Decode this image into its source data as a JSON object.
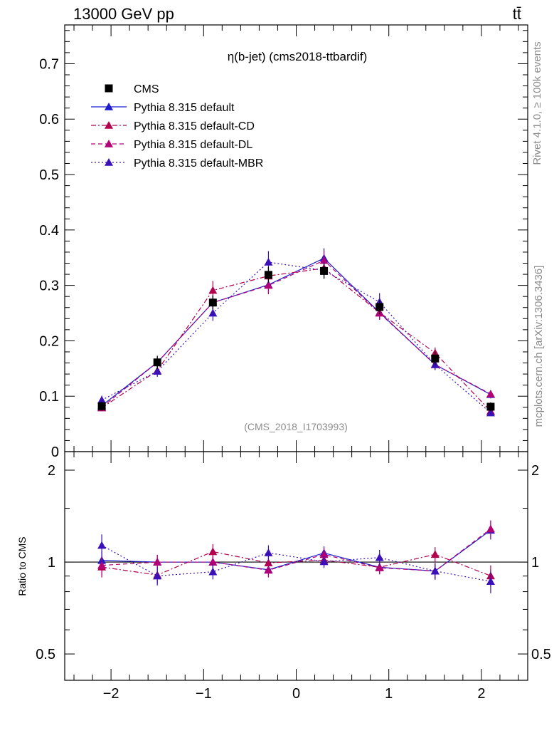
{
  "header": {
    "left": "13000 GeV pp",
    "right": "tt̄"
  },
  "side_labels": {
    "rivet": "Rivet 4.1.0, ≥ 100k events",
    "mcplots": "mcplots.cern.ch [arXiv:1306.3436]"
  },
  "chart_data": {
    "type": "scatter",
    "title": "η(b-jet) (cms2018-ttbardif)",
    "watermark": "(CMS_2018_I1703993)",
    "xlabel": "",
    "ylabel": "",
    "ratio_ylabel": "Ratio to CMS",
    "xlim": [
      -2.5,
      2.5
    ],
    "ylim": [
      0,
      0.77
    ],
    "ratio_ylim": [
      0.41,
      2.3
    ],
    "x_ticks": [
      -2,
      -1,
      0,
      1,
      2
    ],
    "x_tick_labels": [
      "−2",
      "−1",
      "0",
      "1",
      "2"
    ],
    "y_ticks": [
      0,
      0.1,
      0.2,
      0.3,
      0.4,
      0.5,
      0.6,
      0.7
    ],
    "y_tick_labels": [
      "0",
      "0.1",
      "0.2",
      "0.3",
      "0.4",
      "0.5",
      "0.6",
      "0.7"
    ],
    "ratio_ticks": [
      0.5,
      1,
      2
    ],
    "ratio_tick_labels": [
      "0.5",
      "1",
      "2"
    ],
    "x": [
      -2.1,
      -1.5,
      -0.9,
      -0.3,
      0.3,
      0.9,
      1.5,
      2.1
    ],
    "data": {
      "name": "CMS",
      "color": "#000000",
      "values": [
        0.082,
        0.161,
        0.269,
        0.319,
        0.326,
        0.261,
        0.168,
        0.081
      ],
      "errors": [
        0.008,
        0.012,
        0.013,
        0.014,
        0.014,
        0.013,
        0.012,
        0.008
      ]
    },
    "series": [
      {
        "name": "Pythia 8.315 default",
        "color": "#1c1ccc",
        "dash": "",
        "values": [
          0.083,
          0.161,
          0.269,
          0.301,
          0.349,
          0.251,
          0.157,
          0.103
        ],
        "errors": [
          0.006,
          0.009,
          0.012,
          0.016,
          0.018,
          0.012,
          0.009,
          0.007
        ]
      },
      {
        "name": "Pythia 8.315 default-CD",
        "color": "#b3004d",
        "dash": "7,3,2,3",
        "values": [
          0.079,
          0.146,
          0.291,
          0.317,
          0.331,
          0.251,
          0.178,
          0.073
        ],
        "errors": [
          0.006,
          0.009,
          0.017,
          0.016,
          0.016,
          0.013,
          0.01,
          0.006
        ]
      },
      {
        "name": "Pythia 8.315 default-DL",
        "color": "#b30077",
        "dash": "6,4",
        "values": [
          0.08,
          0.161,
          0.269,
          0.3,
          0.345,
          0.25,
          0.157,
          0.104
        ],
        "errors": [
          0.006,
          0.009,
          0.012,
          0.016,
          0.018,
          0.012,
          0.009,
          0.007
        ]
      },
      {
        "name": "Pythia 8.315 default-MBR",
        "color": "#3a10b8",
        "dash": "2,3",
        "values": [
          0.093,
          0.145,
          0.25,
          0.342,
          0.327,
          0.27,
          0.157,
          0.07
        ],
        "errors": [
          0.008,
          0.01,
          0.014,
          0.02,
          0.015,
          0.016,
          0.01,
          0.006
        ]
      }
    ],
    "legend_position": "top-left"
  }
}
